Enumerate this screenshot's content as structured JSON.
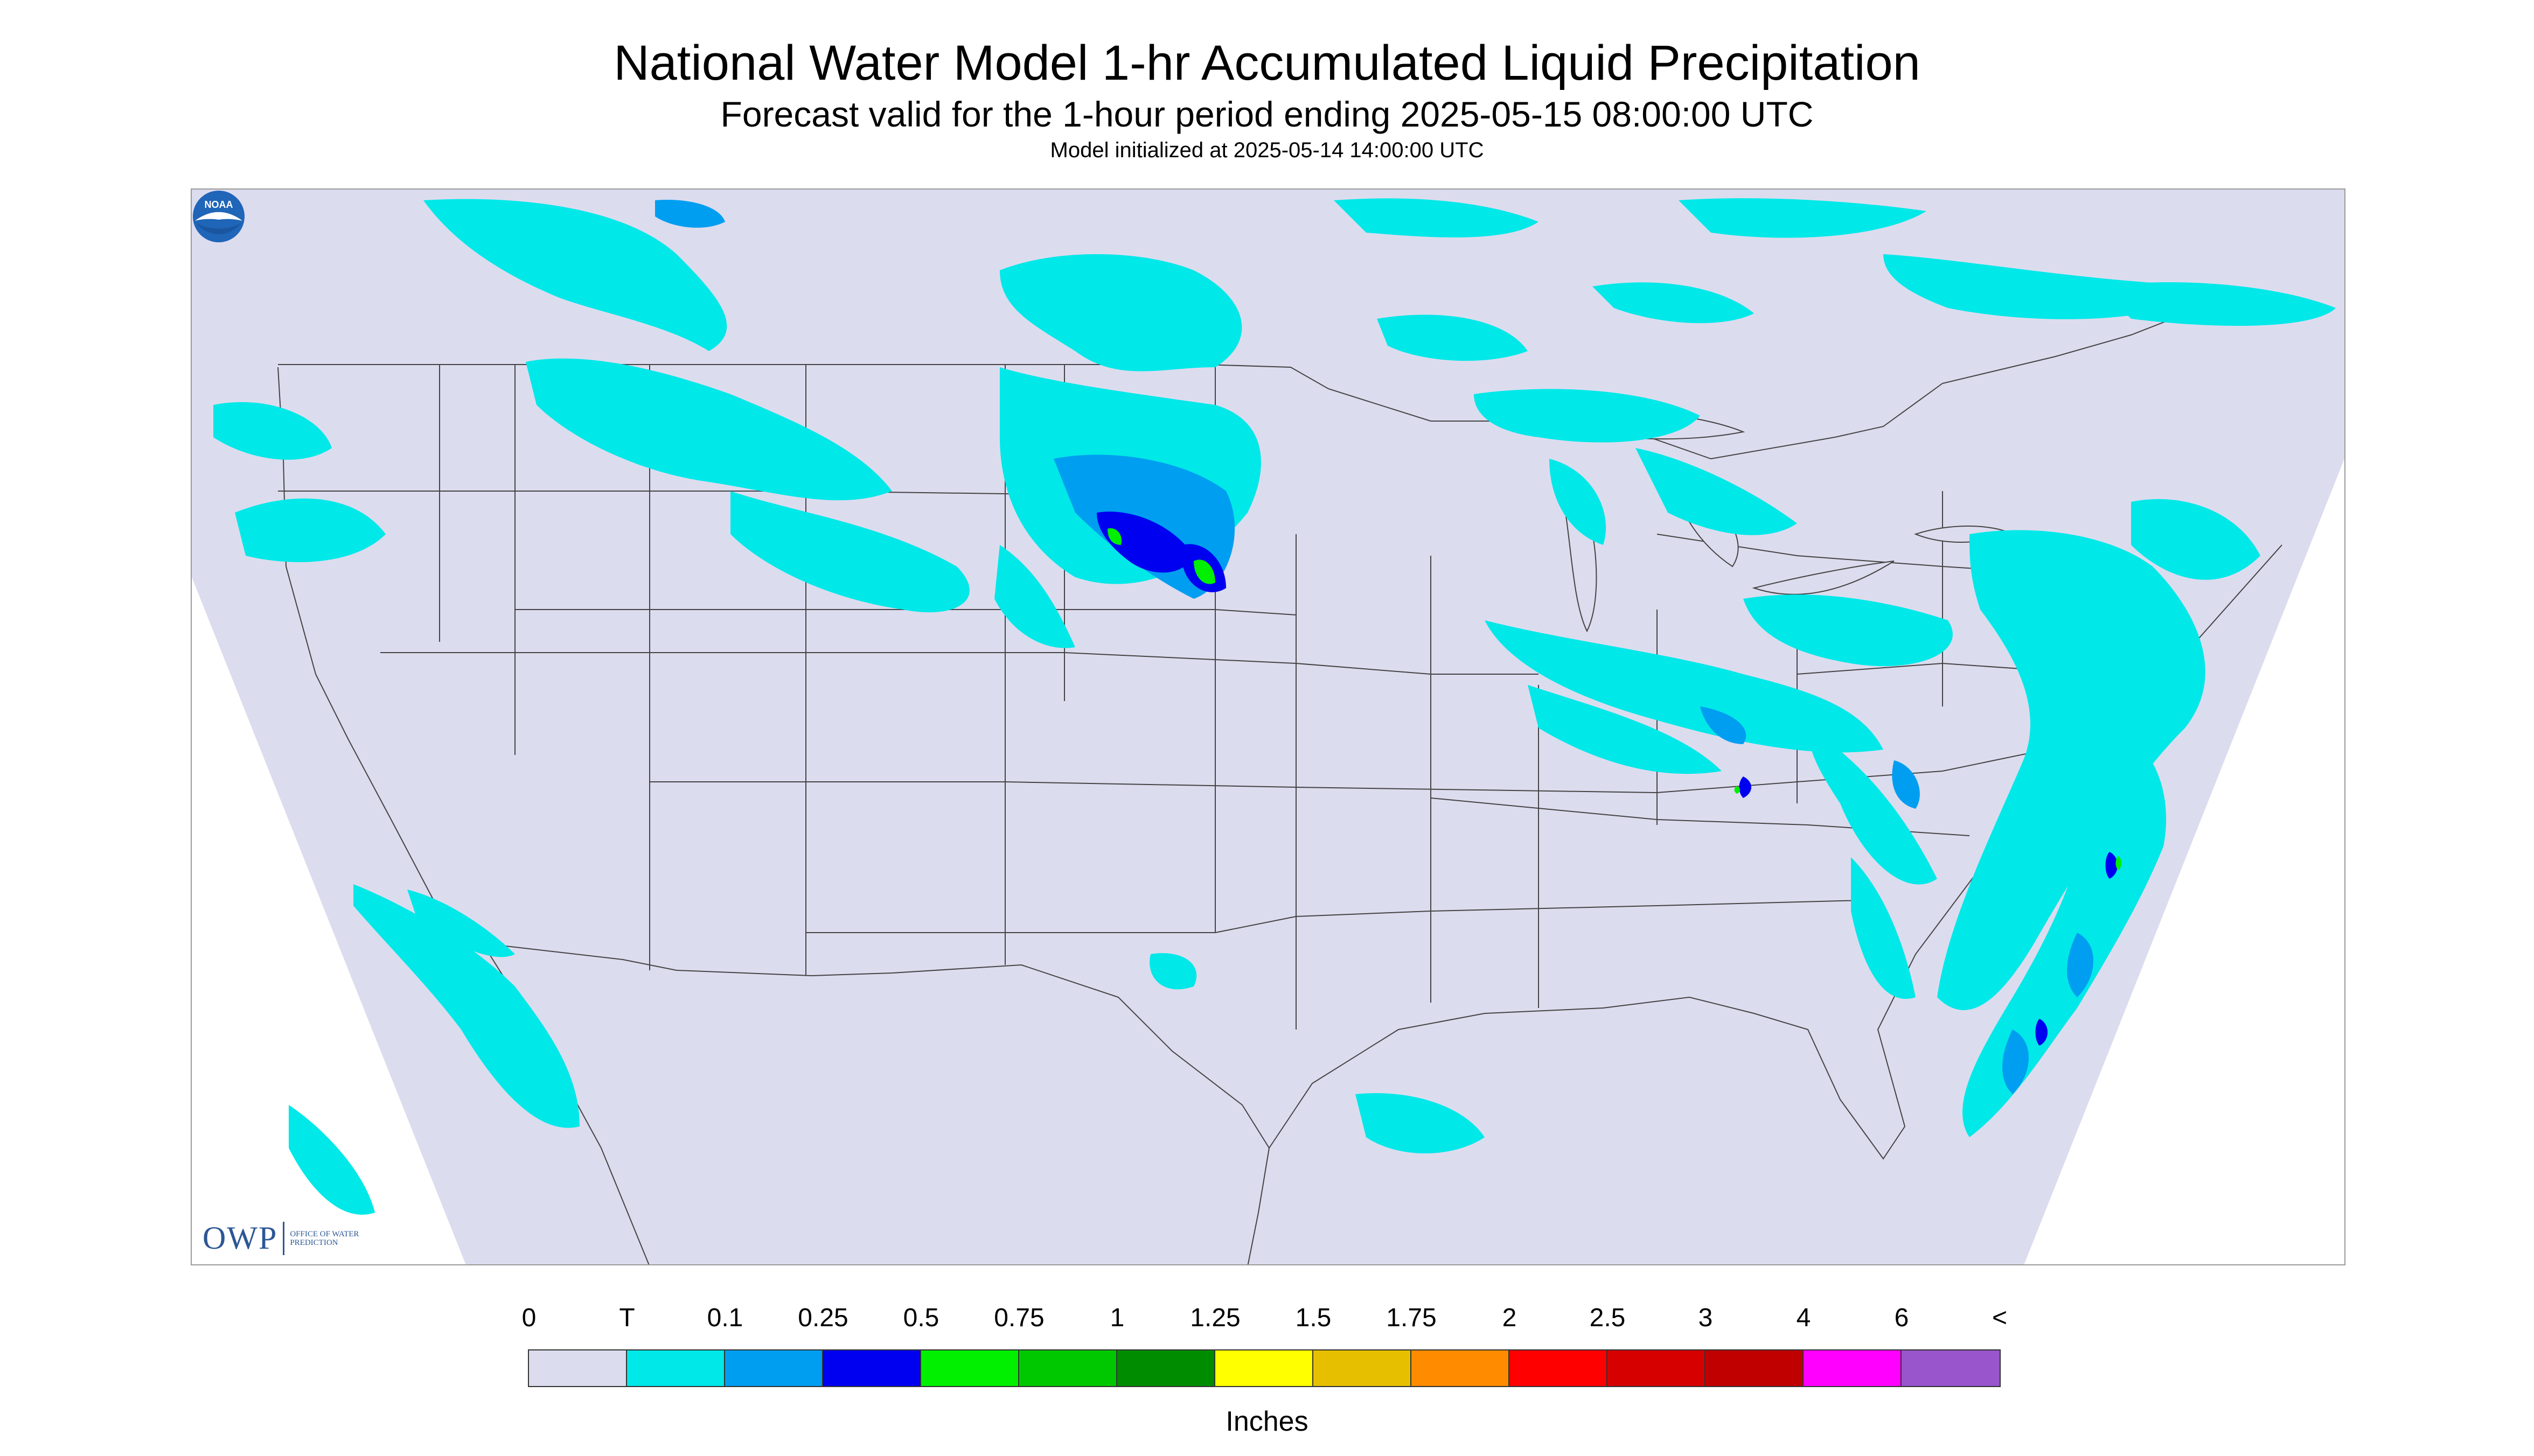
{
  "header": {
    "title": "National Water Model 1-hr Accumulated Liquid Precipitation",
    "subtitle": "Forecast valid for the 1-hour period ending 2025-05-15 08:00:00 UTC",
    "init_line": "Model initialized at 2025-05-14 14:00:00 UTC"
  },
  "map": {
    "background_color": "#dcdcef",
    "border_color": "#000000",
    "logos": {
      "owp_letters": "OWP",
      "owp_words": "OFFICE OF WATER PREDICTION",
      "noaa_text": "NOAA",
      "noaa_icon": "noaa-seagull-logo-icon"
    }
  },
  "legend": {
    "units": "Inches",
    "labels": [
      "0",
      "T",
      "0.1",
      "0.25",
      "0.5",
      "0.75",
      "1",
      "1.25",
      "1.5",
      "1.75",
      "2",
      "2.5",
      "3",
      "4",
      "6",
      "<"
    ],
    "colors": [
      "#dcdcef",
      "#00e8e8",
      "#009ef0",
      "#0000f0",
      "#00f000",
      "#00c800",
      "#008c00",
      "#ffff00",
      "#e6c000",
      "#ff8c00",
      "#ff0000",
      "#d60000",
      "#c00000",
      "#ff00ff",
      "#9955cc"
    ]
  }
}
